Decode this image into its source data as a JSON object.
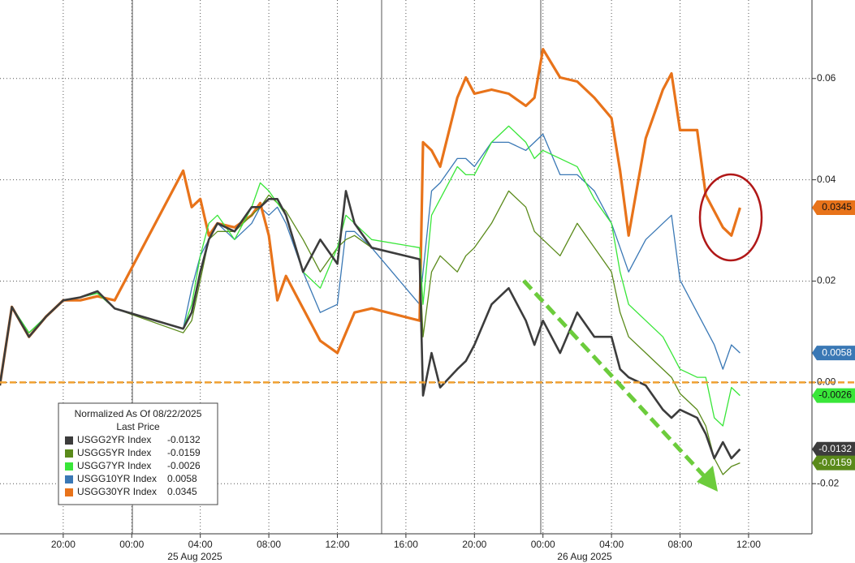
{
  "chart_data": {
    "type": "line",
    "legend_title": "Normalized As Of 08/22/2025",
    "legend_subtitle": "Last Price",
    "date_labels": [
      "25 Aug 2025",
      "26 Aug 2025"
    ],
    "xlim": [
      0.31,
      47.7
    ],
    "xticks": [
      {
        "value": 4,
        "label": "20:00"
      },
      {
        "value": 8,
        "label": "00:00"
      },
      {
        "value": 12,
        "label": "04:00"
      },
      {
        "value": 16,
        "label": "08:00"
      },
      {
        "value": 20,
        "label": "12:00"
      },
      {
        "value": 24,
        "label": "16:00"
      },
      {
        "value": 28,
        "label": "20:00"
      },
      {
        "value": 32,
        "label": "00:00"
      },
      {
        "value": 36,
        "label": "04:00"
      },
      {
        "value": 40,
        "label": "08:00"
      },
      {
        "value": 44,
        "label": "12:00"
      }
    ],
    "ylim": [
      -0.0299,
      0.0755
    ],
    "yticks": [
      0.06,
      0.04,
      0.02,
      {
        "value": 0,
        "label": "0.00"
      },
      -0.02
    ],
    "grid": true,
    "reference_line": {
      "value": 0,
      "color": "#f0a030"
    },
    "x": [
      0.3,
      1,
      2,
      3,
      4,
      5,
      6,
      7,
      11,
      11.5,
      12,
      12.5,
      13,
      14,
      15,
      15.5,
      16,
      16.5,
      17,
      18,
      19,
      20,
      20.5,
      21,
      22,
      24.8,
      25,
      25.5,
      26,
      27,
      27.5,
      28,
      29,
      30,
      31,
      31.5,
      32,
      33,
      34,
      35,
      36,
      36.5,
      37,
      38,
      39,
      39.5,
      40,
      41,
      41.5,
      42,
      42.5,
      43,
      43.5
    ],
    "series": [
      {
        "name": "USGG2YR Index",
        "color": "#3c3c3c",
        "values": [
          -0.0006,
          0.0149,
          0.009,
          0.013,
          0.0162,
          0.0168,
          0.018,
          0.0146,
          0.0106,
          0.0138,
          0.0218,
          0.0282,
          0.0314,
          0.0298,
          0.0346,
          0.0346,
          0.0362,
          0.0362,
          0.033,
          0.0218,
          0.0282,
          0.0234,
          0.0378,
          0.0314,
          0.0266,
          0.0243,
          -0.0026,
          0.0058,
          -0.001,
          0.0026,
          0.0042,
          0.0074,
          0.0154,
          0.0186,
          0.0122,
          0.0074,
          0.0122,
          0.0058,
          0.0138,
          0.009,
          0.009,
          0.0026,
          0.001,
          -0.0006,
          -0.0054,
          -0.007,
          -0.0054,
          -0.007,
          -0.0102,
          -0.015,
          -0.0118,
          -0.015,
          -0.0132
        ]
      },
      {
        "name": "USGG5YR Index",
        "color": "#5a8a1a",
        "values": [
          -0.0006,
          0.0149,
          0.0098,
          0.013,
          0.0162,
          0.0168,
          0.0176,
          0.0146,
          0.0098,
          0.0122,
          0.0202,
          0.0282,
          0.0298,
          0.0298,
          0.033,
          0.0346,
          0.037,
          0.0354,
          0.0338,
          0.0282,
          0.0218,
          0.0266,
          0.0282,
          0.029,
          0.0266,
          0.0243,
          0.009,
          0.0218,
          0.025,
          0.0218,
          0.025,
          0.0266,
          0.0314,
          0.0378,
          0.0346,
          0.0298,
          0.0282,
          0.025,
          0.0314,
          0.0266,
          0.0218,
          0.0138,
          0.009,
          0.0058,
          0.0026,
          0.001,
          -0.0022,
          -0.0054,
          -0.0086,
          -0.015,
          -0.0182,
          -0.0166,
          -0.0159
        ]
      },
      {
        "name": "USGG7YR Index",
        "color": "#39e639",
        "values": [
          -0.0006,
          0.0149,
          0.0098,
          0.013,
          0.0162,
          0.0168,
          0.0176,
          0.0146,
          0.0106,
          0.0154,
          0.025,
          0.0314,
          0.033,
          0.0282,
          0.0346,
          0.0394,
          0.0378,
          0.0354,
          0.033,
          0.0218,
          0.0186,
          0.0266,
          0.033,
          0.0314,
          0.0282,
          0.0266,
          0.0154,
          0.033,
          0.0362,
          0.0426,
          0.041,
          0.041,
          0.0474,
          0.0506,
          0.0474,
          0.0442,
          0.0458,
          0.0442,
          0.0426,
          0.0362,
          0.0314,
          0.0218,
          0.0154,
          0.0122,
          0.009,
          0.0058,
          0.0026,
          0.001,
          0.001,
          -0.007,
          -0.0086,
          -0.001,
          -0.0026
        ]
      },
      {
        "name": "USGG10YR Index",
        "color": "#3a78b5",
        "values": [
          -0.0006,
          0.0149,
          0.0098,
          0.013,
          0.0162,
          0.0168,
          0.0176,
          0.0146,
          0.0106,
          0.0186,
          0.025,
          0.0282,
          0.0314,
          0.0282,
          0.0314,
          0.0346,
          0.033,
          0.0346,
          0.0314,
          0.0218,
          0.0138,
          0.0154,
          0.0298,
          0.0298,
          0.0266,
          0.0154,
          0.0218,
          0.0378,
          0.0394,
          0.0442,
          0.0442,
          0.0426,
          0.0474,
          0.0474,
          0.0458,
          0.0474,
          0.049,
          0.041,
          0.041,
          0.0378,
          0.0314,
          0.0266,
          0.0218,
          0.0282,
          0.0314,
          0.033,
          0.0202,
          0.0138,
          0.0106,
          0.0074,
          0.0026,
          0.0074,
          0.0058
        ]
      },
      {
        "name": "USGG30YR Index",
        "color": "#e8731a",
        "values": [
          -0.0006,
          0.0149,
          0.009,
          0.013,
          0.0162,
          0.0162,
          0.017,
          0.0162,
          0.0418,
          0.0346,
          0.0362,
          0.029,
          0.0314,
          0.0306,
          0.033,
          0.0354,
          0.029,
          0.0162,
          0.021,
          0.0146,
          0.0082,
          0.0058,
          0.0098,
          0.0138,
          0.0146,
          0.0122,
          0.0474,
          0.0458,
          0.0426,
          0.0562,
          0.0602,
          0.057,
          0.0578,
          0.057,
          0.0546,
          0.0562,
          0.0658,
          0.0602,
          0.0594,
          0.0562,
          0.0522,
          0.0418,
          0.029,
          0.0482,
          0.0578,
          0.061,
          0.0498,
          0.0498,
          0.037,
          0.0338,
          0.0306,
          0.029,
          0.0345
        ]
      }
    ]
  }
}
